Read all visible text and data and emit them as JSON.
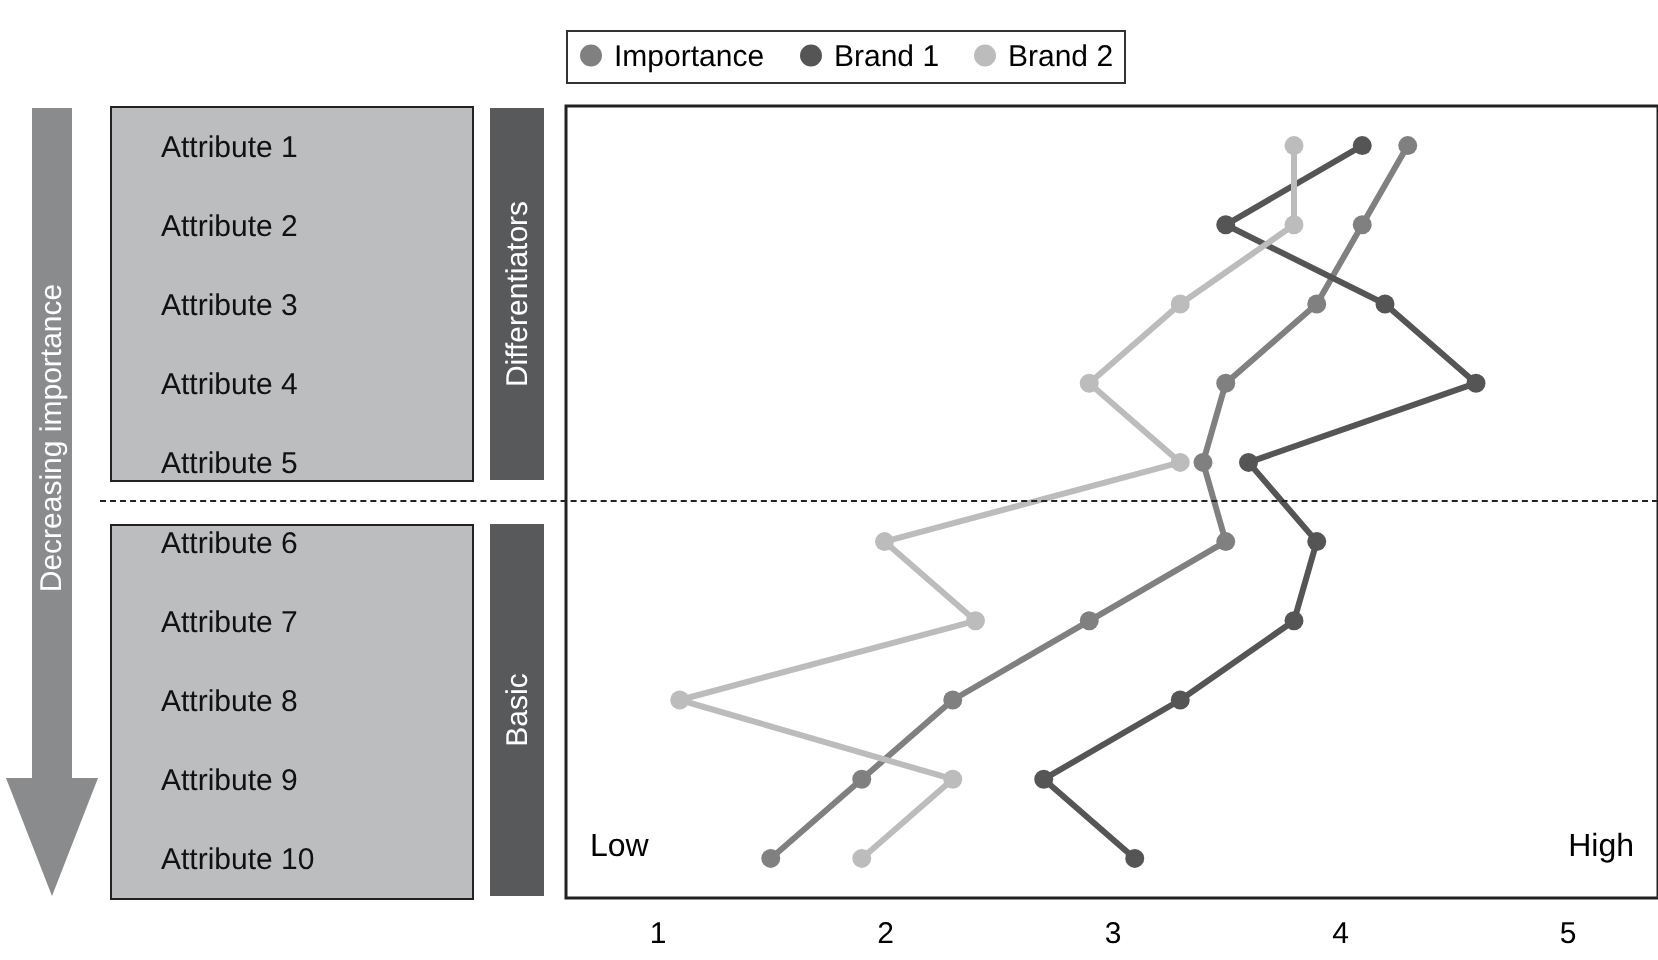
{
  "chart_data": {
    "type": "line",
    "orientation": "horizontal",
    "categories": [
      "Attribute 1",
      "Attribute 2",
      "Attribute 3",
      "Attribute 4",
      "Attribute 5",
      "Attribute 6",
      "Attribute 7",
      "Attribute 8",
      "Attribute 9",
      "Attribute 10"
    ],
    "series": [
      {
        "name": "Importance",
        "color": "#808080",
        "values": [
          4.3,
          4.1,
          3.9,
          3.5,
          3.4,
          3.5,
          2.9,
          2.3,
          1.9,
          1.5
        ]
      },
      {
        "name": "Brand 1",
        "color": "#555555",
        "values": [
          4.1,
          3.5,
          4.2,
          4.6,
          3.6,
          3.9,
          3.8,
          3.3,
          2.7,
          3.1
        ]
      },
      {
        "name": "Brand 2",
        "color": "#bcbcbc",
        "values": [
          3.8,
          3.8,
          3.3,
          2.9,
          3.3,
          2.0,
          2.4,
          1.1,
          2.3,
          1.9
        ]
      }
    ],
    "xlim": [
      0.6,
      5.4
    ],
    "xticks": [
      1,
      2,
      3,
      4,
      5
    ],
    "legend": "top",
    "marker": "circle",
    "grid": false,
    "annotations": [
      "Low",
      "High",
      "Differentiators",
      "Basic",
      "Decreasing importance"
    ]
  }
}
